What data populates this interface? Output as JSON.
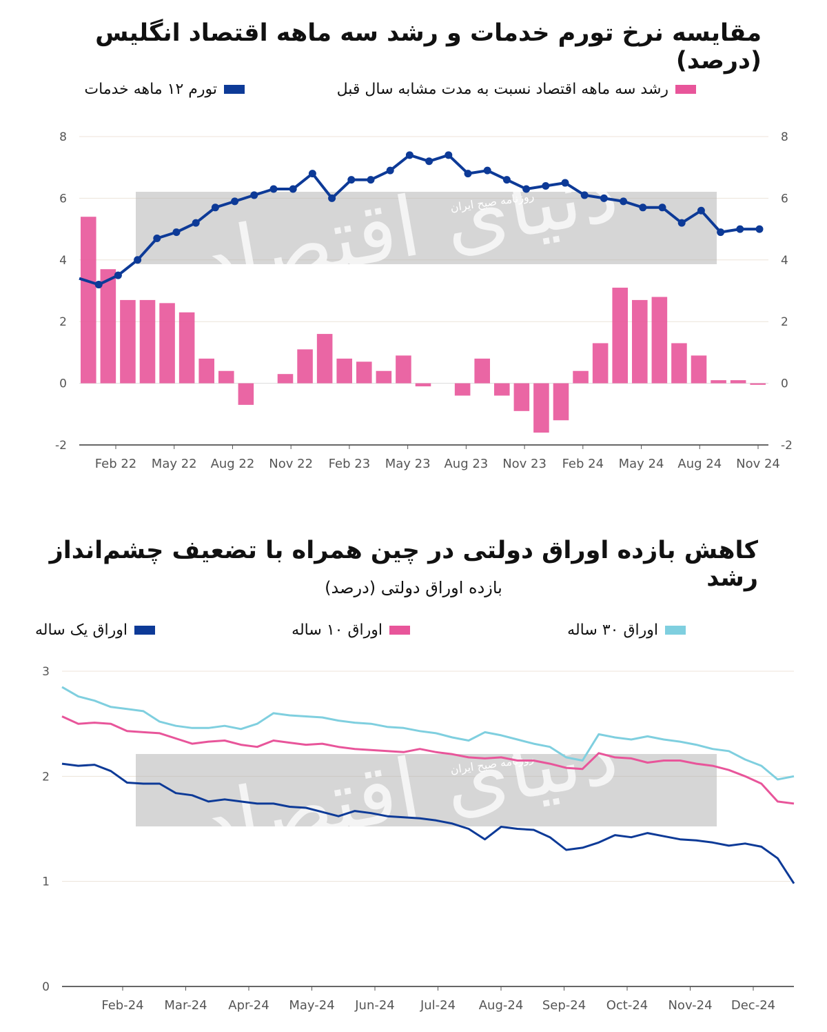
{
  "chart_data": [
    {
      "type": "bar+line",
      "title": "مقایسه نرخ تورم خدمات و رشد سه ماهه اقتصاد انگلیس (درصد)",
      "legend": [
        {
          "name": "رشد سه ماهه اقتصاد نسبت به مدت مشابه سال قبل",
          "color": "#e8559a"
        },
        {
          "name": "تورم ۱۲ ماهه خدمات",
          "color": "#0d3a97"
        }
      ],
      "ylim": [
        -2,
        8
      ],
      "yticks": [
        "8",
        "6",
        "4",
        "2",
        "0",
        "-2"
      ],
      "xticks": [
        "Feb 22",
        "May 22",
        "Aug 22",
        "Nov 22",
        "Feb 23",
        "May 23",
        "Aug 23",
        "Nov 23",
        "Feb 24",
        "May 24",
        "Aug 24",
        "Nov 24"
      ],
      "grid": true,
      "bar_series": {
        "name": "رشد سه ماهه اقتصاد نسبت به مدت مشابه سال قبل",
        "values": [
          5.4,
          3.7,
          2.7,
          2.7,
          2.6,
          2.3,
          0.8,
          0.4,
          -0.7,
          null,
          0.3,
          1.1,
          1.6,
          0.8,
          0.7,
          0.4,
          0.9,
          -0.1,
          null,
          -0.4,
          0.8,
          -0.4,
          -0.9,
          -1.6,
          -1.2,
          0.4,
          1.3,
          3.1,
          2.7,
          2.8,
          1.3,
          0.9,
          0.1,
          0.1,
          -0.05
        ]
      },
      "line_series": {
        "name": "تورم ۱۲ ماهه خدمات",
        "values": [
          3.4,
          3.2,
          3.5,
          4.0,
          4.7,
          4.9,
          5.2,
          5.7,
          5.9,
          6.1,
          6.3,
          6.3,
          6.8,
          6.0,
          6.6,
          6.6,
          6.9,
          7.4,
          7.2,
          7.4,
          6.8,
          6.9,
          6.6,
          6.3,
          6.4,
          6.5,
          6.1,
          6.0,
          5.9,
          5.7,
          5.7,
          5.2,
          5.6,
          4.9,
          5.0,
          5.0
        ]
      },
      "watermark_small": "روزنامه صبح ایران",
      "watermark_big": "دنیای اقتصاد"
    },
    {
      "type": "line",
      "title": "کاهش بازده اوراق دولتی در چین همراه با تضعیف چشم‌انداز رشد",
      "subtitle": "بازده اوراق دولتی (درصد)",
      "ylim": [
        0,
        3
      ],
      "yticks": [
        "3",
        "2",
        "1",
        "0"
      ],
      "xticks": [
        "Feb-24",
        "Mar-24",
        "Apr-24",
        "May-24",
        "Jun-24",
        "Jul-24",
        "Aug-24",
        "Sep-24",
        "Oct-24",
        "Nov-24",
        "Dec-24"
      ],
      "grid": true,
      "series": [
        {
          "name": "اوراق یک ساله",
          "color": "#0d3a97",
          "values": [
            2.12,
            2.1,
            2.11,
            2.05,
            1.94,
            1.93,
            1.93,
            1.84,
            1.82,
            1.76,
            1.78,
            1.76,
            1.74,
            1.74,
            1.71,
            1.7,
            1.66,
            1.62,
            1.67,
            1.65,
            1.62,
            1.61,
            1.6,
            1.58,
            1.55,
            1.5,
            1.4,
            1.52,
            1.5,
            1.49,
            1.42,
            1.3,
            1.32,
            1.37,
            1.44,
            1.42,
            1.46,
            1.43,
            1.4,
            1.39,
            1.37,
            1.34,
            1.36,
            1.33,
            1.22,
            0.98
          ]
        },
        {
          "name": "اوراق ۱۰ ساله",
          "color": "#e8559a",
          "values": [
            2.57,
            2.5,
            2.51,
            2.5,
            2.43,
            2.42,
            2.41,
            2.36,
            2.31,
            2.33,
            2.34,
            2.3,
            2.28,
            2.34,
            2.32,
            2.3,
            2.31,
            2.28,
            2.26,
            2.25,
            2.24,
            2.23,
            2.26,
            2.23,
            2.21,
            2.18,
            2.17,
            2.18,
            2.15,
            2.15,
            2.12,
            2.08,
            2.07,
            2.22,
            2.18,
            2.17,
            2.13,
            2.15,
            2.15,
            2.12,
            2.1,
            2.06,
            2.0,
            1.93,
            1.76,
            1.74
          ]
        },
        {
          "name": "اوراق ۳۰ ساله",
          "color": "#7fcfdf",
          "values": [
            2.85,
            2.76,
            2.72,
            2.66,
            2.64,
            2.62,
            2.52,
            2.48,
            2.46,
            2.46,
            2.48,
            2.45,
            2.5,
            2.6,
            2.58,
            2.57,
            2.56,
            2.53,
            2.51,
            2.5,
            2.47,
            2.46,
            2.43,
            2.41,
            2.37,
            2.34,
            2.42,
            2.39,
            2.35,
            2.31,
            2.28,
            2.18,
            2.15,
            2.4,
            2.37,
            2.35,
            2.38,
            2.35,
            2.33,
            2.3,
            2.26,
            2.24,
            2.16,
            2.1,
            1.97,
            2.0
          ]
        }
      ],
      "watermark_small": "روزنامه صبح ایران",
      "watermark_big": "دنیای اقتصاد"
    }
  ]
}
